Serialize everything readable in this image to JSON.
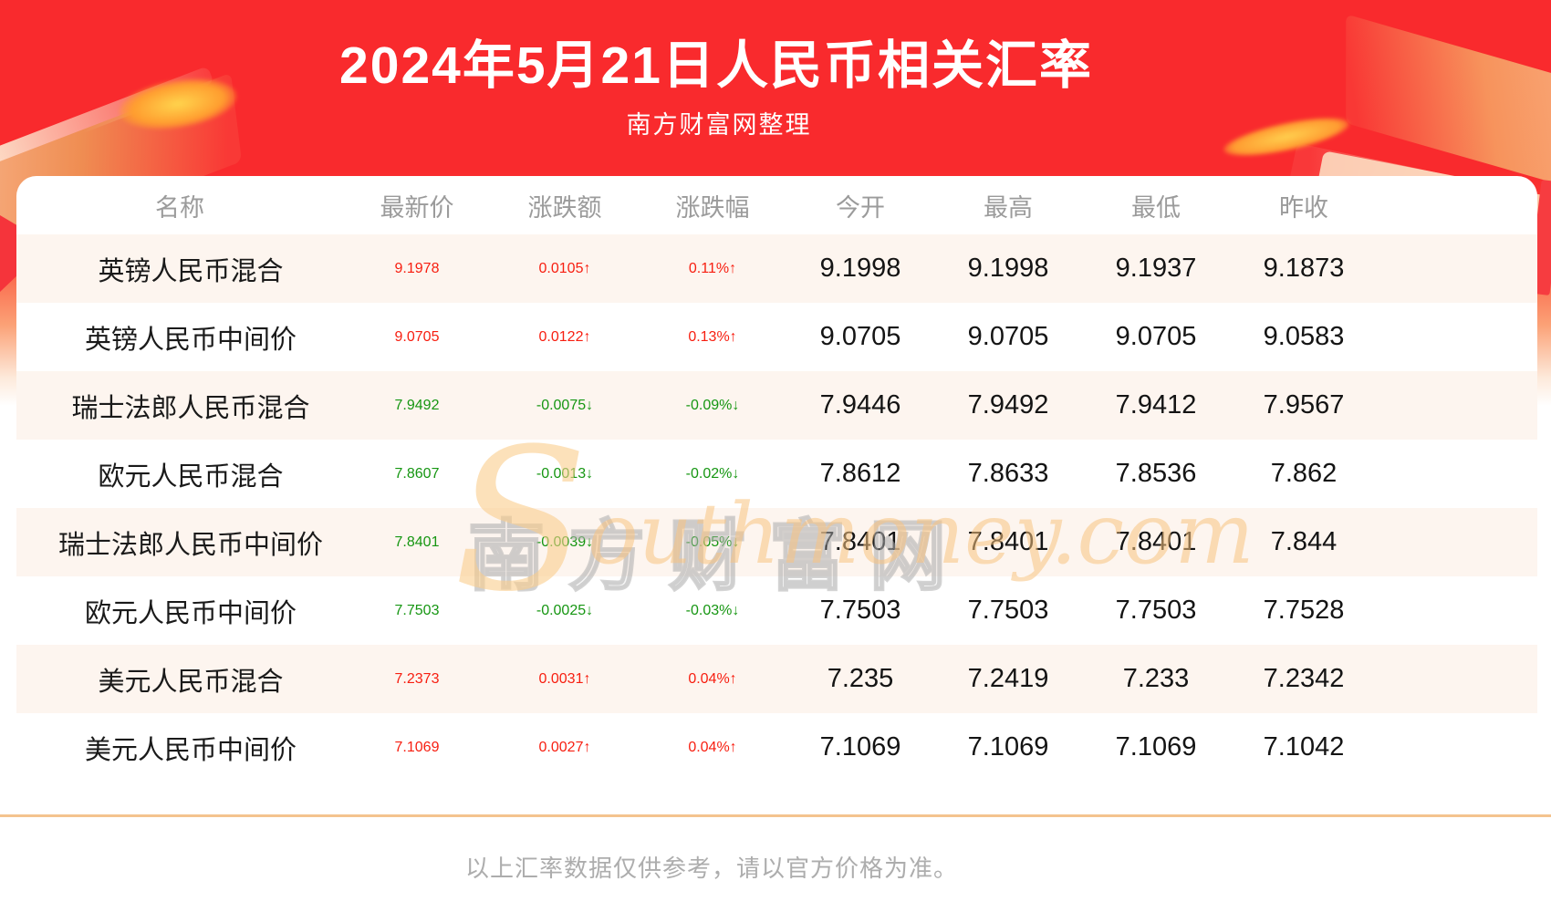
{
  "header": {
    "title": "2024年5月21日人民币相关汇率",
    "subtitle": "南方财富网整理"
  },
  "chart_data": {
    "type": "table",
    "title": "2024年5月21日人民币相关汇率",
    "columns": [
      "名称",
      "最新价",
      "涨跌额",
      "涨跌幅",
      "今开",
      "最高",
      "最低",
      "昨收"
    ],
    "rows": [
      {
        "name": "英镑人民币混合",
        "latest": "9.1978",
        "change": "0.0105↑",
        "pct": "0.11%↑",
        "open": "9.1998",
        "high": "9.1998",
        "low": "9.1937",
        "prev_close": "9.1873",
        "direction": "up"
      },
      {
        "name": "英镑人民币中间价",
        "latest": "9.0705",
        "change": "0.0122↑",
        "pct": "0.13%↑",
        "open": "9.0705",
        "high": "9.0705",
        "low": "9.0705",
        "prev_close": "9.0583",
        "direction": "up"
      },
      {
        "name": "瑞士法郎人民币混合",
        "latest": "7.9492",
        "change": "-0.0075↓",
        "pct": "-0.09%↓",
        "open": "7.9446",
        "high": "7.9492",
        "low": "7.9412",
        "prev_close": "7.9567",
        "direction": "down"
      },
      {
        "name": "欧元人民币混合",
        "latest": "7.8607",
        "change": "-0.0013↓",
        "pct": "-0.02%↓",
        "open": "7.8612",
        "high": "7.8633",
        "low": "7.8536",
        "prev_close": "7.862",
        "direction": "down"
      },
      {
        "name": "瑞士法郎人民币中间价",
        "latest": "7.8401",
        "change": "-0.0039↓",
        "pct": "-0.05%↓",
        "open": "7.8401",
        "high": "7.8401",
        "low": "7.8401",
        "prev_close": "7.844",
        "direction": "down"
      },
      {
        "name": "欧元人民币中间价",
        "latest": "7.7503",
        "change": "-0.0025↓",
        "pct": "-0.03%↓",
        "open": "7.7503",
        "high": "7.7503",
        "low": "7.7503",
        "prev_close": "7.7528",
        "direction": "down"
      },
      {
        "name": "美元人民币混合",
        "latest": "7.2373",
        "change": "0.0031↑",
        "pct": "0.04%↑",
        "open": "7.235",
        "high": "7.2419",
        "low": "7.233",
        "prev_close": "7.2342",
        "direction": "up"
      },
      {
        "name": "美元人民币中间价",
        "latest": "7.1069",
        "change": "0.0027↑",
        "pct": "0.04%↑",
        "open": "7.1069",
        "high": "7.1069",
        "low": "7.1069",
        "prev_close": "7.1042",
        "direction": "up"
      }
    ]
  },
  "watermark": {
    "cn": "南方财富网",
    "en_initial": "S",
    "en_rest": "outhmoney.com"
  },
  "footer": {
    "disclaimer": "以上汇率数据仅供参考，请以官方价格为准。"
  },
  "theme": {
    "up_color": "#f71e10",
    "down_color": "#169612",
    "stripe_color": "#fdf5ef",
    "header_text_color": "#9b9b9b",
    "banner_red": "#f92a2d",
    "divider_color": "#f4c38e"
  }
}
